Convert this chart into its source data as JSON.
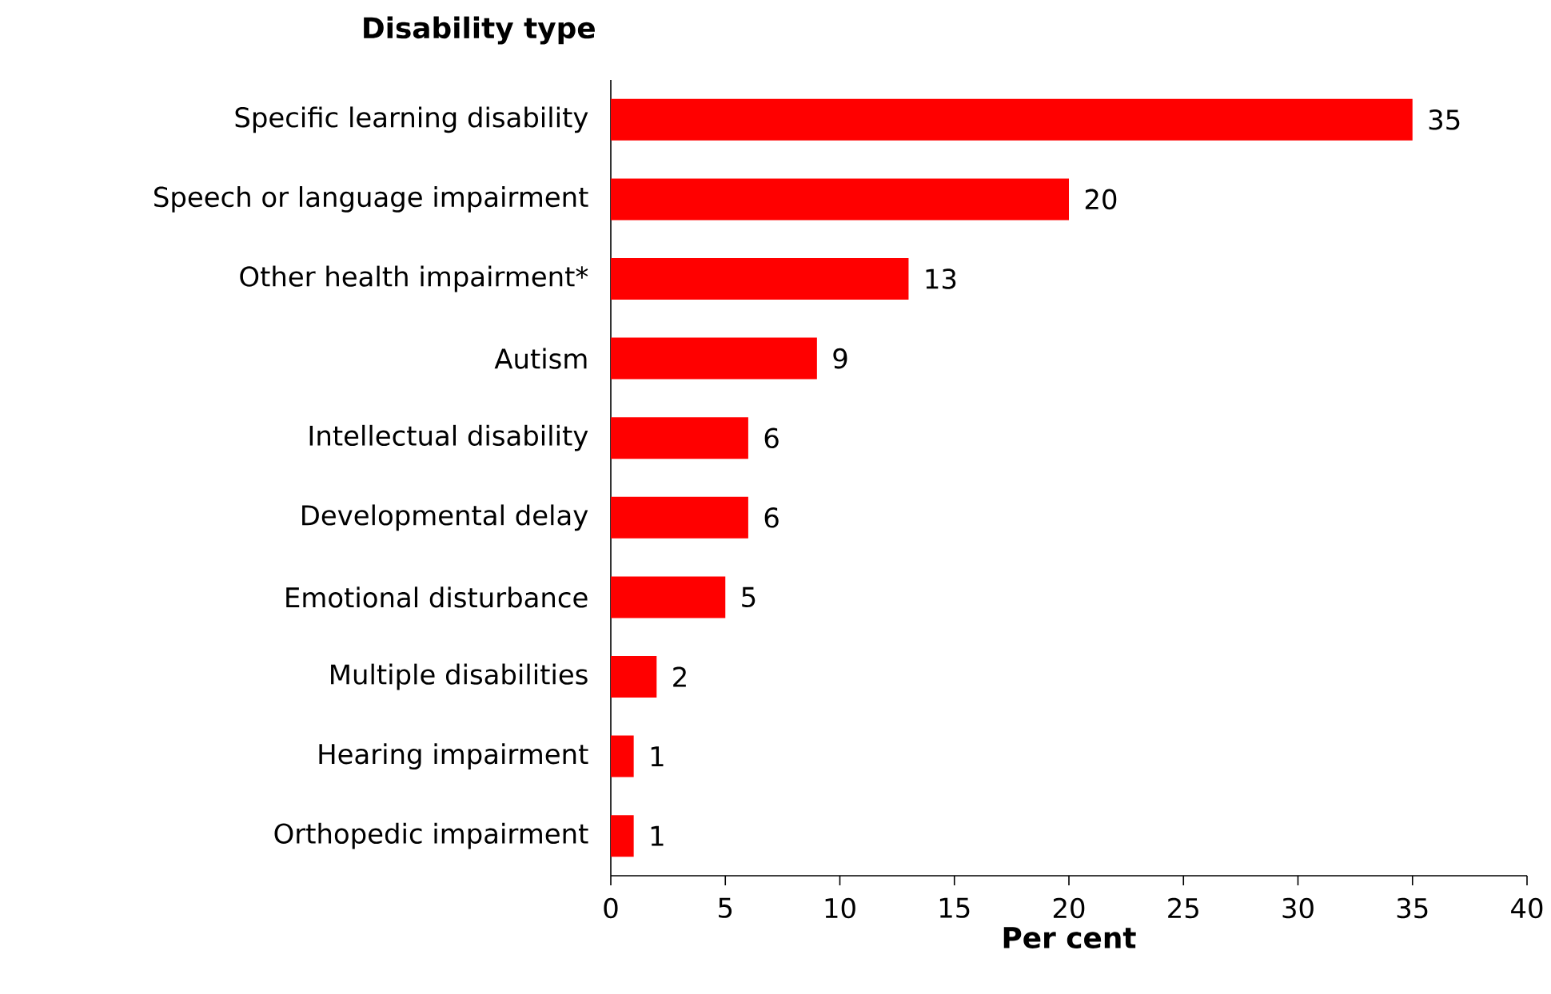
{
  "chart_data": {
    "type": "bar",
    "orientation": "horizontal",
    "ylabel": "Disability type",
    "xlabel": "Per cent",
    "categories": [
      "Specific learning disability",
      "Speech or language impairment",
      "Other health impairment*",
      "Autism",
      "Intellectual disability",
      "Developmental delay",
      "Emotional disturbance",
      "Multiple disabilities",
      "Hearing impairment",
      "Orthopedic impairment"
    ],
    "values": [
      35,
      20,
      13,
      9,
      6,
      6,
      5,
      2,
      1,
      1
    ],
    "color": "#ff0000",
    "data_labels": true,
    "xlim": [
      0,
      40
    ],
    "xticks": [
      0,
      5,
      10,
      15,
      20,
      25,
      30,
      35,
      40
    ]
  }
}
